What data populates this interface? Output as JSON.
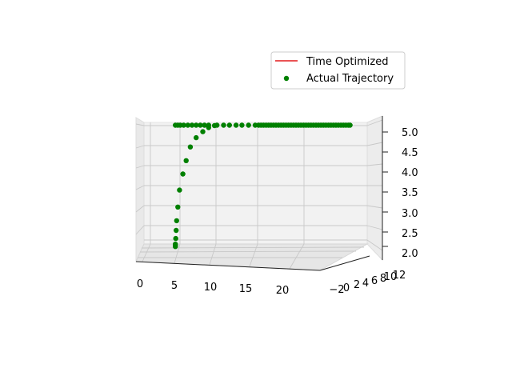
{
  "chart_data": {
    "type": "scatter",
    "projection": "3d",
    "grid": true,
    "legend_placement": "upper-right",
    "legend": [
      {
        "label": "Time Optimized",
        "marker": "line",
        "color": "#e41a1c"
      },
      {
        "label": "Actual Trajectory",
        "marker": "dot",
        "color": "#008000"
      }
    ],
    "axes": {
      "x": {
        "ticks": [
          "0",
          "5",
          "10",
          "15",
          "20"
        ],
        "range": [
          0,
          24
        ]
      },
      "y": {
        "ticks": [
          "−2",
          "0",
          "2",
          "4",
          "6",
          "8",
          "10",
          "12"
        ],
        "range": [
          -3,
          12
        ]
      },
      "z": {
        "ticks": [
          "2.0",
          "2.5",
          "3.0",
          "3.5",
          "4.0",
          "4.5",
          "5.0"
        ],
        "range": [
          1.9,
          5.1
        ]
      }
    },
    "series": [
      {
        "name": "Time Optimized",
        "type": "line",
        "color": "#e41a1c",
        "points": []
      },
      {
        "name": "Actual Trajectory",
        "type": "scatter",
        "color": "#008000",
        "points": [
          {
            "x": 3.0,
            "z": 2.0
          },
          {
            "x": 3.0,
            "z": 2.03
          },
          {
            "x": 3.0,
            "z": 2.06
          },
          {
            "x": 3.05,
            "z": 2.2
          },
          {
            "x": 3.1,
            "z": 2.4
          },
          {
            "x": 3.15,
            "z": 2.64
          },
          {
            "x": 3.3,
            "z": 2.98
          },
          {
            "x": 3.5,
            "z": 3.4
          },
          {
            "x": 3.9,
            "z": 3.8
          },
          {
            "x": 4.3,
            "z": 4.13
          },
          {
            "x": 4.8,
            "z": 4.47
          },
          {
            "x": 5.5,
            "z": 4.7
          },
          {
            "x": 6.3,
            "z": 4.85
          },
          {
            "x": 7.0,
            "z": 4.95
          },
          {
            "x": 7.7,
            "z": 5.0
          },
          {
            "x": 3.0,
            "z": 5.01
          },
          {
            "x": 3.3,
            "z": 5.01
          },
          {
            "x": 3.6,
            "z": 5.01
          },
          {
            "x": 4.0,
            "z": 5.01
          },
          {
            "x": 4.5,
            "z": 5.01
          },
          {
            "x": 5.0,
            "z": 5.01
          },
          {
            "x": 5.5,
            "z": 5.01
          },
          {
            "x": 6.0,
            "z": 5.01
          },
          {
            "x": 6.5,
            "z": 5.01
          },
          {
            "x": 7.0,
            "z": 5.01
          },
          {
            "x": 8.0,
            "z": 5.01
          },
          {
            "x": 8.8,
            "z": 5.01
          },
          {
            "x": 9.5,
            "z": 5.01
          },
          {
            "x": 10.3,
            "z": 5.01
          },
          {
            "x": 11.0,
            "z": 5.01
          },
          {
            "x": 11.8,
            "z": 5.01
          },
          {
            "x": 12.6,
            "z": 5.01
          },
          {
            "x": 13.0,
            "z": 5.01
          },
          {
            "x": 13.3,
            "z": 5.01
          },
          {
            "x": 13.6,
            "z": 5.01
          },
          {
            "x": 13.9,
            "z": 5.01
          },
          {
            "x": 14.2,
            "z": 5.01
          },
          {
            "x": 14.5,
            "z": 5.01
          },
          {
            "x": 14.8,
            "z": 5.01
          },
          {
            "x": 15.1,
            "z": 5.01
          },
          {
            "x": 15.4,
            "z": 5.01
          },
          {
            "x": 15.7,
            "z": 5.01
          },
          {
            "x": 16.0,
            "z": 5.01
          },
          {
            "x": 16.3,
            "z": 5.01
          },
          {
            "x": 16.6,
            "z": 5.01
          },
          {
            "x": 16.9,
            "z": 5.01
          },
          {
            "x": 17.2,
            "z": 5.01
          },
          {
            "x": 17.5,
            "z": 5.01
          },
          {
            "x": 17.8,
            "z": 5.01
          },
          {
            "x": 18.1,
            "z": 5.01
          },
          {
            "x": 18.4,
            "z": 5.01
          },
          {
            "x": 18.7,
            "z": 5.01
          },
          {
            "x": 19.0,
            "z": 5.01
          },
          {
            "x": 19.3,
            "z": 5.01
          },
          {
            "x": 19.6,
            "z": 5.01
          },
          {
            "x": 19.9,
            "z": 5.01
          },
          {
            "x": 20.2,
            "z": 5.01
          },
          {
            "x": 20.5,
            "z": 5.01
          },
          {
            "x": 20.8,
            "z": 5.01
          },
          {
            "x": 21.1,
            "z": 5.01
          },
          {
            "x": 21.4,
            "z": 5.01
          },
          {
            "x": 21.7,
            "z": 5.01
          },
          {
            "x": 22.0,
            "z": 5.01
          },
          {
            "x": 22.3,
            "z": 5.01
          },
          {
            "x": 22.6,
            "z": 5.01
          },
          {
            "x": 22.9,
            "z": 5.01
          },
          {
            "x": 23.2,
            "z": 5.01
          },
          {
            "x": 23.5,
            "z": 5.01
          },
          {
            "x": 23.8,
            "z": 5.01
          },
          {
            "x": 24.0,
            "z": 5.01
          }
        ]
      }
    ]
  }
}
